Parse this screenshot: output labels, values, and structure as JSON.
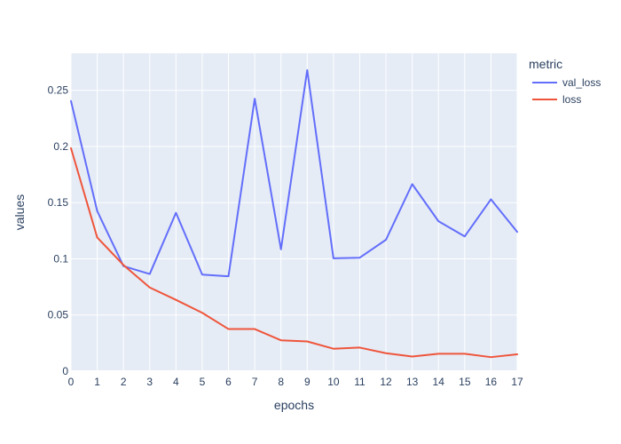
{
  "chart_data": {
    "type": "line",
    "xlabel": "epochs",
    "ylabel": "values",
    "xlim": [
      0,
      17
    ],
    "ylim": [
      0,
      0.283
    ],
    "x": [
      0,
      1,
      2,
      3,
      4,
      5,
      6,
      7,
      8,
      9,
      10,
      11,
      12,
      13,
      14,
      15,
      16,
      17
    ],
    "xticks": [
      0,
      1,
      2,
      3,
      4,
      5,
      6,
      7,
      8,
      9,
      10,
      11,
      12,
      13,
      14,
      15,
      16,
      17
    ],
    "yticks": [
      0,
      0.05,
      0.1,
      0.15,
      0.2,
      0.25
    ],
    "ytick_labels": [
      "0",
      "0.05",
      "0.1",
      "0.15",
      "0.2",
      "0.25"
    ],
    "legend": {
      "title": "metric",
      "placement": "top-right outside"
    },
    "grid": true,
    "background_color": "#e5ecf6",
    "series": [
      {
        "name": "val_loss",
        "color": "#636efa",
        "values": [
          0.2405,
          0.1425,
          0.0935,
          0.0865,
          0.141,
          0.086,
          0.0845,
          0.2425,
          0.1085,
          0.268,
          0.1005,
          0.101,
          0.117,
          0.1665,
          0.1335,
          0.12,
          0.153,
          0.124
        ]
      },
      {
        "name": "loss",
        "color": "#ef553b",
        "values": [
          0.1985,
          0.119,
          0.0945,
          0.0745,
          0.0635,
          0.052,
          0.0375,
          0.0375,
          0.0275,
          0.0265,
          0.02,
          0.021,
          0.016,
          0.013,
          0.0155,
          0.0155,
          0.0125,
          0.015
        ]
      }
    ]
  }
}
